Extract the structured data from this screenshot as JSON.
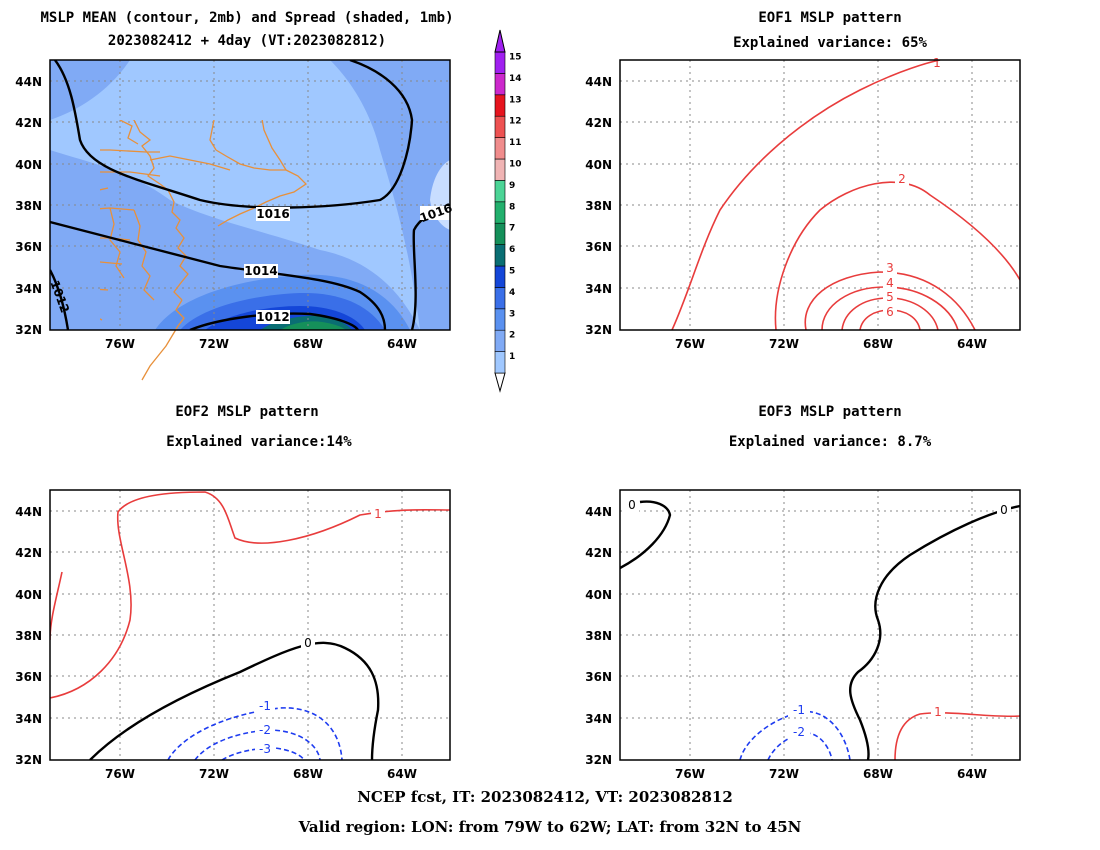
{
  "panels": {
    "mean": {
      "title1": "MSLP MEAN (contour, 2mb) and Spread (shaded, 1mb)",
      "title2": "2023082412 + 4day (VT:2023082812)"
    },
    "eof1": {
      "title": "EOF1 MSLP pattern",
      "subtitle": "Explained variance: 65%"
    },
    "eof2": {
      "title": "EOF2 MSLP pattern",
      "subtitle": "Explained variance:14%"
    },
    "eof3": {
      "title": "EOF3 MSLP pattern",
      "subtitle": "Explained variance: 8.7%"
    }
  },
  "axes": {
    "lat_labels": [
      "44N",
      "42N",
      "40N",
      "38N",
      "36N",
      "34N",
      "32N"
    ],
    "lon_labels": [
      "76W",
      "72W",
      "68W",
      "64W"
    ]
  },
  "contour_labels": {
    "mean": [
      "1016",
      "1014",
      "1012",
      "1016",
      "1012"
    ],
    "eof1": [
      "1",
      "2",
      "3",
      "4",
      "5",
      "6"
    ],
    "eof2": [
      "1",
      "0",
      "-1",
      "-2",
      "-3"
    ],
    "eof3": [
      "0",
      "0",
      "-1",
      "-2",
      "1"
    ]
  },
  "colorbar": {
    "levels": [
      "1",
      "2",
      "3",
      "4",
      "5",
      "6",
      "7",
      "8",
      "9",
      "10",
      "11",
      "12",
      "13",
      "14",
      "15"
    ],
    "colors": [
      "#a0c8ff",
      "#80aaf5",
      "#5a91f0",
      "#3a6fe8",
      "#1446d8",
      "#0a6e73",
      "#15905a",
      "#22b06d",
      "#4cd496",
      "#f0b4b4",
      "#f08c8c",
      "#ee5252",
      "#e6141e",
      "#cc28cc",
      "#a020f0"
    ]
  },
  "footer": {
    "line1": "NCEP fcst, IT: 2023082412, VT: 2023082812",
    "line2": "Valid region: LON: from 79W to 62W; LAT: from 32N to 45N"
  }
}
